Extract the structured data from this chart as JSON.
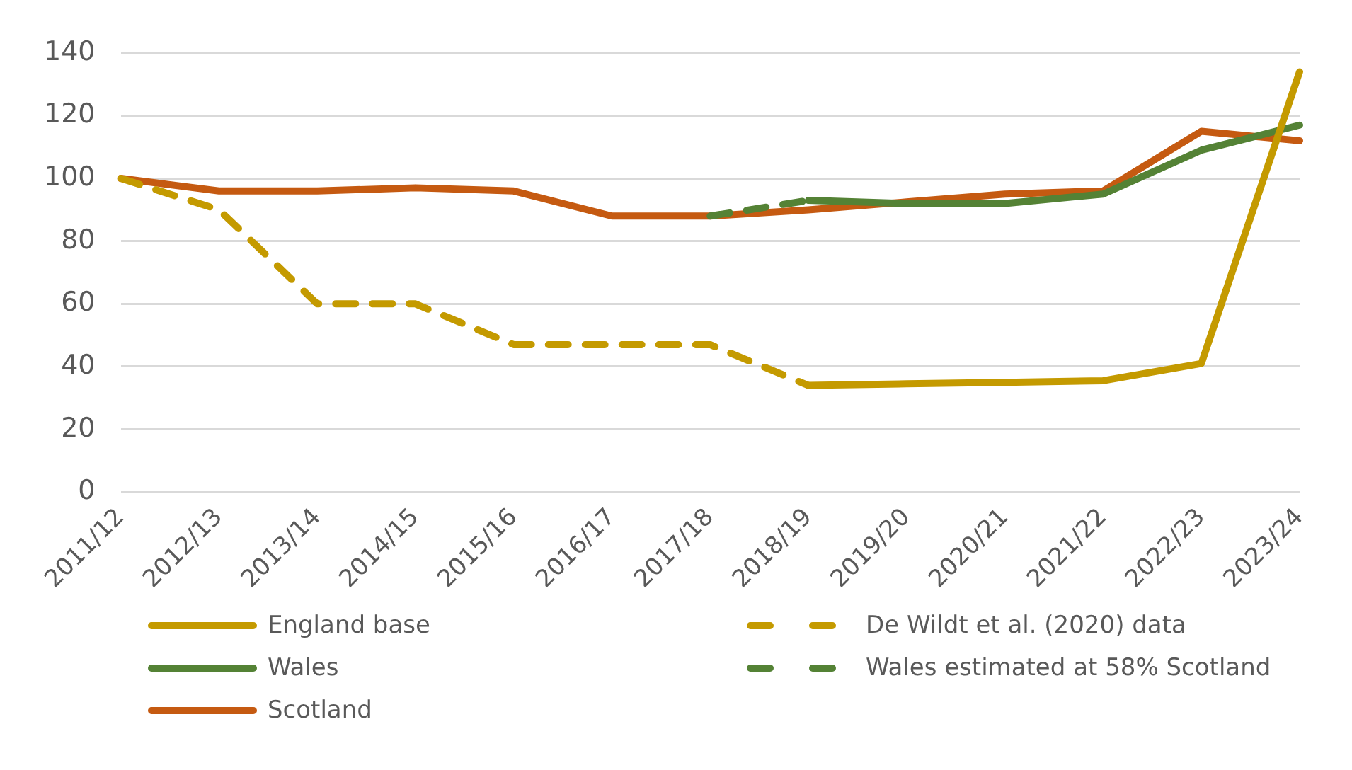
{
  "chart_data": {
    "type": "line",
    "categories": [
      "2011/12",
      "2012/13",
      "2013/14",
      "2014/15",
      "2015/16",
      "2016/17",
      "2017/18",
      "2018/19",
      "2019/20",
      "2020/21",
      "2021/22",
      "2022/23",
      "2023/24"
    ],
    "series": [
      {
        "name": "England base",
        "color": "#c49a00",
        "line_style": "solid",
        "values": [
          null,
          null,
          null,
          null,
          null,
          null,
          null,
          34,
          34.5,
          35,
          35.5,
          41,
          134
        ]
      },
      {
        "name": "De Wildt et al. (2020) data",
        "color": "#c49a00",
        "line_style": "dashed",
        "values": [
          100,
          90,
          60,
          60,
          47,
          47,
          47,
          34,
          null,
          null,
          null,
          null,
          null
        ]
      },
      {
        "name": "Wales",
        "color": "#548235",
        "line_style": "solid",
        "values": [
          null,
          null,
          null,
          null,
          null,
          null,
          null,
          93,
          92,
          92,
          95,
          109,
          117
        ]
      },
      {
        "name": "Wales estimated at 58% Scotland",
        "color": "#548235",
        "line_style": "dashed",
        "values": [
          null,
          null,
          null,
          null,
          null,
          null,
          88,
          93,
          null,
          null,
          null,
          null,
          null
        ]
      },
      {
        "name": "Scotland",
        "color": "#c55a11",
        "line_style": "solid",
        "values": [
          100,
          96,
          96,
          97,
          96,
          88,
          88,
          90,
          92.5,
          95,
          96,
          115,
          112
        ]
      }
    ],
    "ylim": [
      0,
      140
    ],
    "yticks": [
      0,
      20,
      40,
      60,
      80,
      100,
      120,
      140
    ],
    "grid": "y",
    "legend": "bottom",
    "marker": "none"
  }
}
